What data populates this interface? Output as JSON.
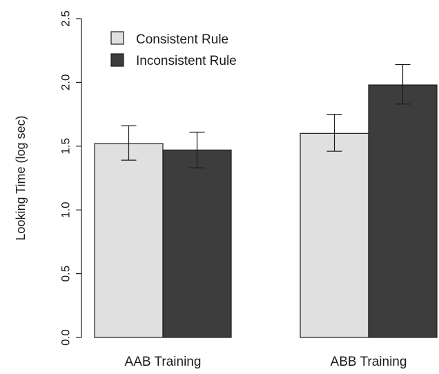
{
  "chart_data": {
    "type": "bar",
    "categories": [
      "AAB Training",
      "ABB Training"
    ],
    "series": [
      {
        "name": "Consistent Rule",
        "color": "#e0e0e0",
        "values": [
          1.52,
          1.6
        ],
        "error_low": [
          1.39,
          1.46
        ],
        "error_high": [
          1.66,
          1.75
        ]
      },
      {
        "name": "Inconsistent Rule",
        "color": "#3d3d3d",
        "values": [
          1.47,
          1.98
        ],
        "error_low": [
          1.33,
          1.83
        ],
        "error_high": [
          1.61,
          2.14
        ]
      }
    ],
    "title": "",
    "xlabel": "",
    "ylabel": "Looking Time (log sec)",
    "ylim": [
      0,
      2.5
    ],
    "yticks": [
      "0.0",
      "0.5",
      "1.0",
      "1.5",
      "2.0",
      "2.5"
    ],
    "grid": false,
    "legend": "top-left",
    "error_bars": true
  }
}
